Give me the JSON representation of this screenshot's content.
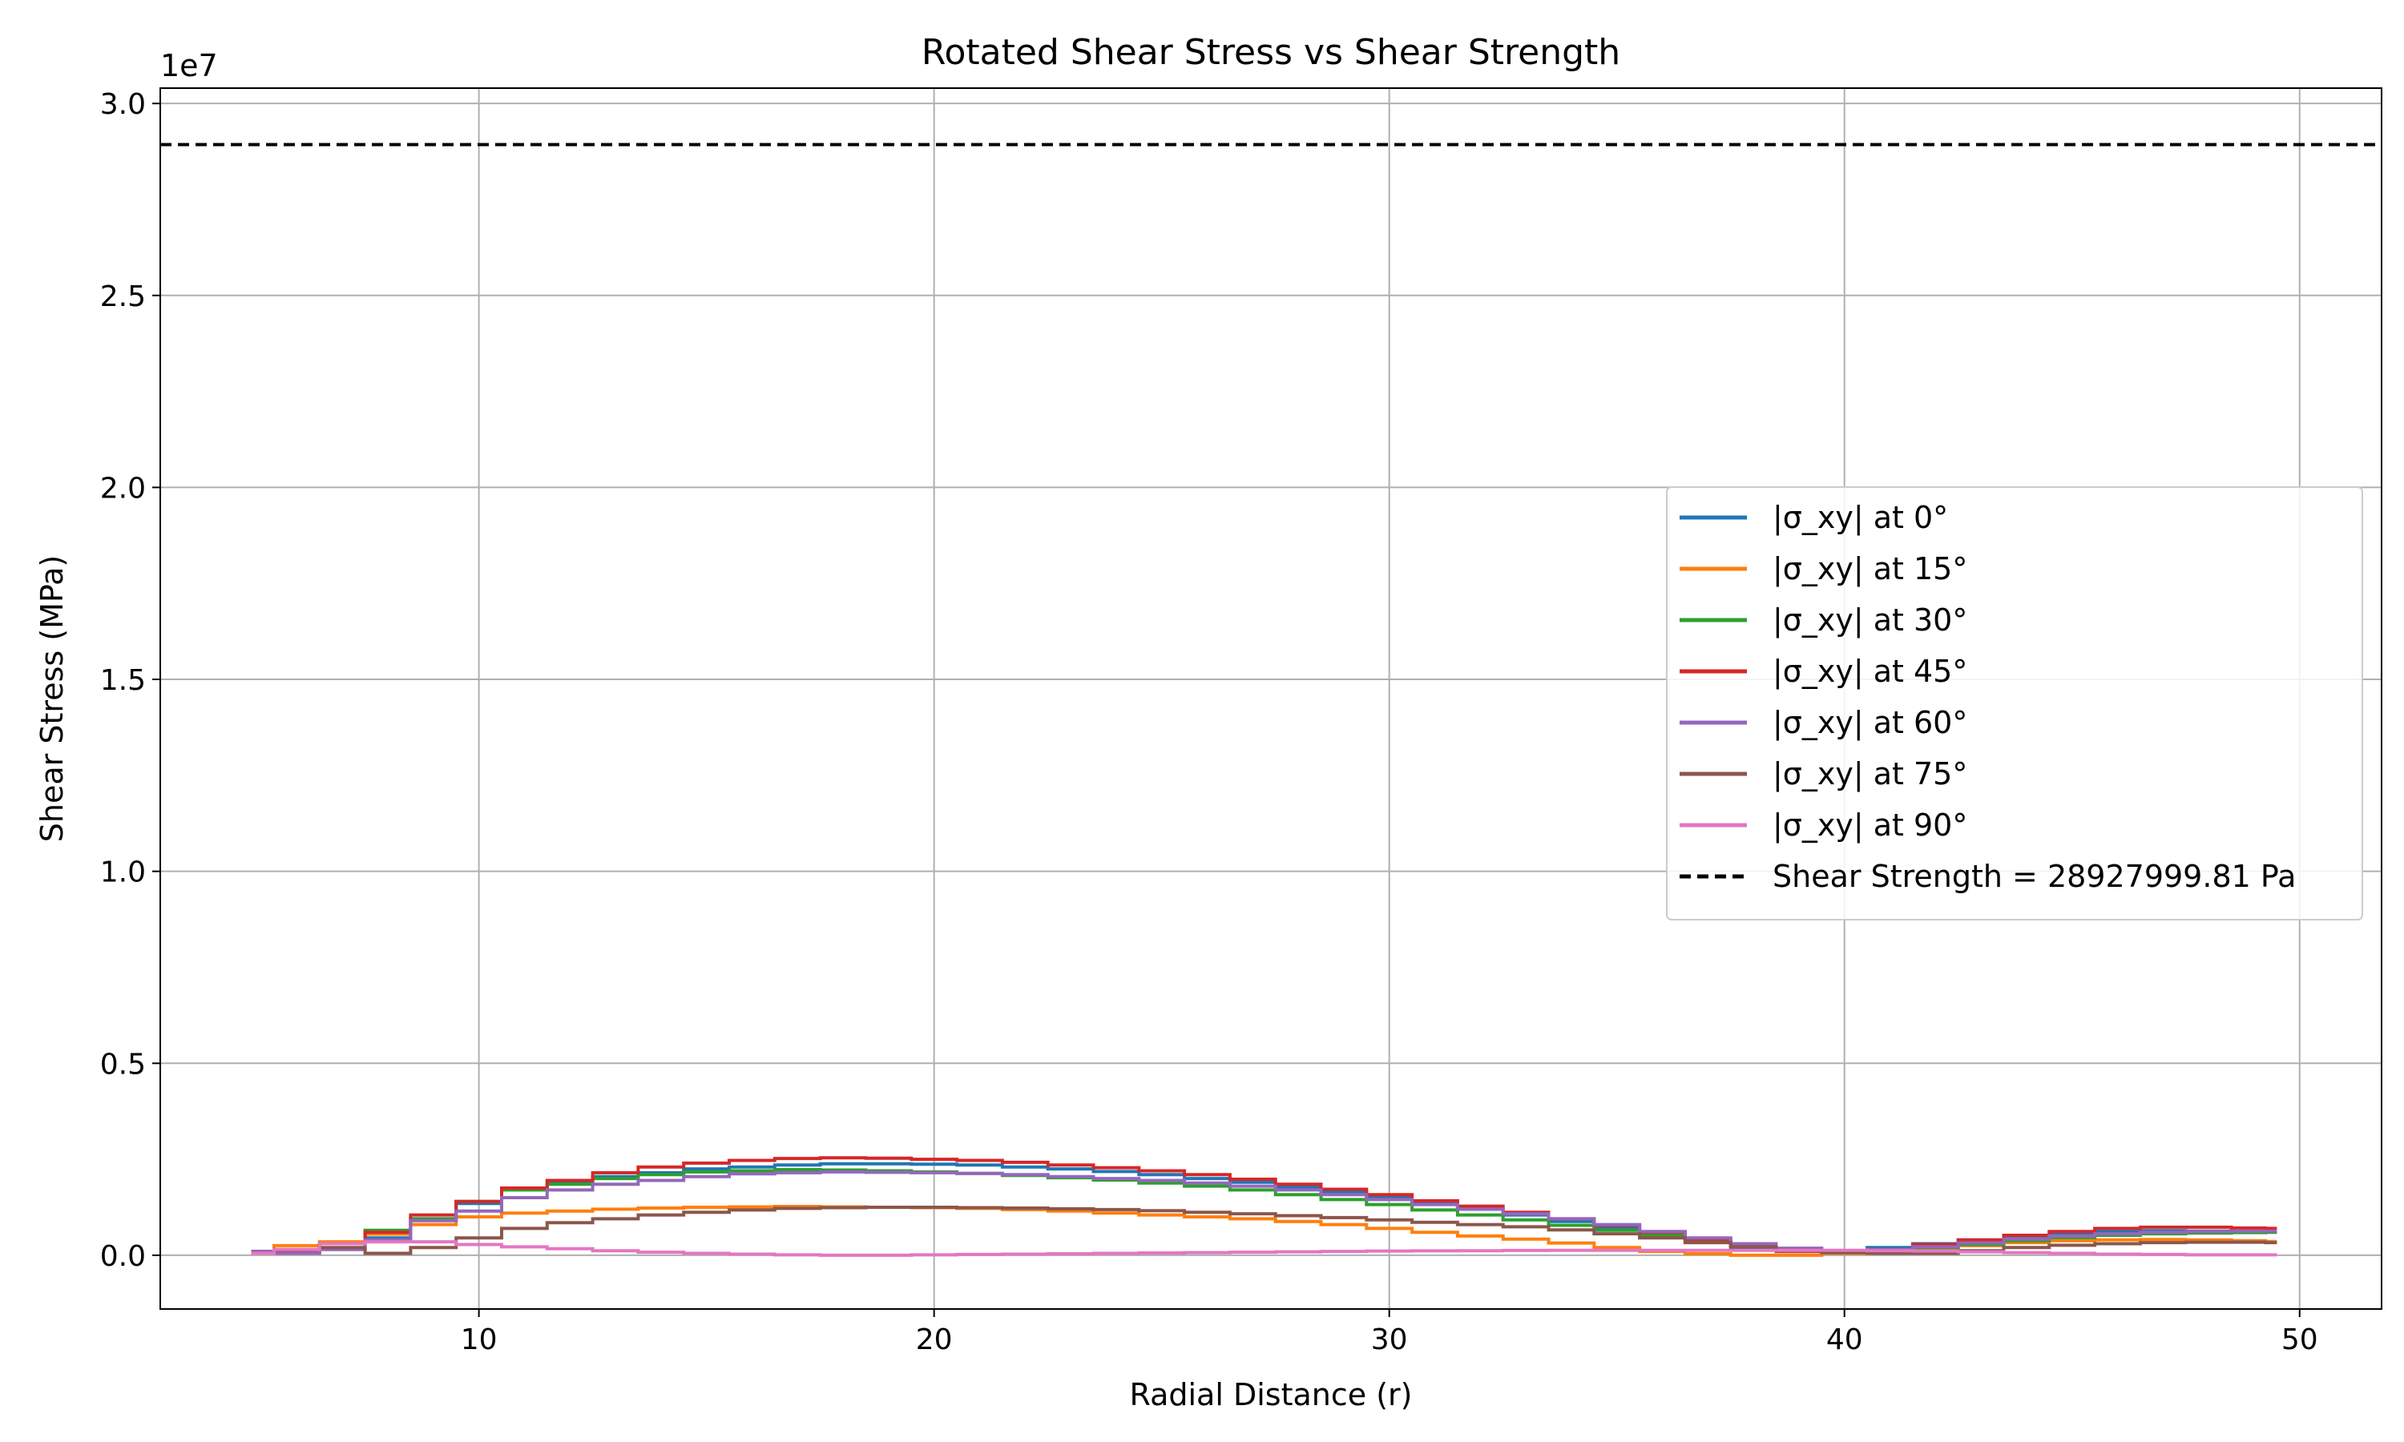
{
  "chart_data": {
    "type": "line",
    "title": "Rotated Shear Stress vs Shear Strength",
    "xlabel": "Radial Distance (r)",
    "ylabel": "Shear Stress (MPa)",
    "y_offset_label": "1e7",
    "xlim": [
      3.0,
      51.8
    ],
    "ylim": [
      -1400000,
      30400000
    ],
    "xticks": [
      10,
      20,
      30,
      40,
      50
    ],
    "xtick_labels": [
      "10",
      "20",
      "30",
      "40",
      "50"
    ],
    "yticks": [
      0,
      5000000,
      10000000,
      15000000,
      20000000,
      25000000,
      30000000
    ],
    "ytick_labels": [
      "0.0",
      "0.5",
      "1.0",
      "1.5",
      "2.0",
      "2.5",
      "3.0"
    ],
    "grid": true,
    "legend_position": "center-right",
    "x": [
      5.0,
      6.0,
      7.0,
      8.0,
      9.0,
      10.0,
      11.0,
      12.0,
      13.0,
      14.0,
      15.0,
      16.0,
      17.0,
      18.0,
      19.0,
      20.0,
      21.0,
      22.0,
      23.0,
      24.0,
      25.0,
      26.0,
      27.0,
      28.0,
      29.0,
      30.0,
      31.0,
      32.0,
      33.0,
      34.0,
      35.0,
      36.0,
      37.0,
      38.0,
      39.0,
      40.0,
      41.0,
      42.0,
      43.0,
      44.0,
      45.0,
      46.0,
      47.0,
      48.0,
      49.0,
      49.5
    ],
    "series": [
      {
        "name": "|σ_xy| at 0°",
        "color": "#1f77b4",
        "style": "solid",
        "values": [
          100000,
          100000,
          300000,
          450000,
          950000,
          1350000,
          1750000,
          1900000,
          2050000,
          2150000,
          2250000,
          2300000,
          2350000,
          2380000,
          2380000,
          2370000,
          2350000,
          2300000,
          2250000,
          2180000,
          2100000,
          2000000,
          1900000,
          1780000,
          1650000,
          1500000,
          1350000,
          1200000,
          1050000,
          880000,
          700000,
          520000,
          350000,
          200000,
          100000,
          120000,
          200000,
          300000,
          400000,
          500000,
          580000,
          620000,
          640000,
          630000,
          620000,
          620000
        ]
      },
      {
        "name": "|σ_xy| at 15°",
        "color": "#ff7f0e",
        "style": "solid",
        "values": [
          50000,
          250000,
          350000,
          550000,
          800000,
          1000000,
          1100000,
          1150000,
          1200000,
          1230000,
          1250000,
          1260000,
          1270000,
          1260000,
          1250000,
          1240000,
          1220000,
          1190000,
          1150000,
          1100000,
          1050000,
          1000000,
          950000,
          880000,
          800000,
          700000,
          600000,
          500000,
          420000,
          320000,
          200000,
          100000,
          40000,
          0,
          0,
          50000,
          100000,
          150000,
          250000,
          330000,
          380000,
          400000,
          410000,
          400000,
          380000,
          360000
        ]
      },
      {
        "name": "|σ_xy| at 30°",
        "color": "#2ca02c",
        "style": "solid",
        "values": [
          100000,
          100000,
          300000,
          650000,
          950000,
          1400000,
          1700000,
          1850000,
          2000000,
          2100000,
          2170000,
          2200000,
          2230000,
          2220000,
          2200000,
          2170000,
          2130000,
          2080000,
          2020000,
          1960000,
          1880000,
          1800000,
          1700000,
          1580000,
          1450000,
          1320000,
          1180000,
          1050000,
          920000,
          780000,
          650000,
          520000,
          400000,
          280000,
          180000,
          120000,
          150000,
          200000,
          280000,
          380000,
          460000,
          520000,
          560000,
          580000,
          590000,
          600000
        ]
      },
      {
        "name": "|σ_xy| at 45°",
        "color": "#d62728",
        "style": "solid",
        "values": [
          100000,
          100000,
          300000,
          600000,
          1050000,
          1400000,
          1750000,
          1950000,
          2150000,
          2300000,
          2400000,
          2470000,
          2520000,
          2540000,
          2530000,
          2500000,
          2470000,
          2420000,
          2350000,
          2280000,
          2200000,
          2100000,
          1980000,
          1850000,
          1720000,
          1580000,
          1420000,
          1280000,
          1120000,
          950000,
          780000,
          600000,
          420000,
          250000,
          100000,
          80000,
          150000,
          280000,
          400000,
          520000,
          620000,
          700000,
          730000,
          730000,
          710000,
          700000
        ]
      },
      {
        "name": "|σ_xy| at 60°",
        "color": "#9467bd",
        "style": "solid",
        "values": [
          100000,
          50000,
          150000,
          400000,
          900000,
          1150000,
          1500000,
          1700000,
          1850000,
          1950000,
          2050000,
          2120000,
          2150000,
          2170000,
          2160000,
          2150000,
          2130000,
          2100000,
          2050000,
          2000000,
          1950000,
          1880000,
          1800000,
          1700000,
          1580000,
          1450000,
          1320000,
          1200000,
          1080000,
          950000,
          800000,
          620000,
          450000,
          300000,
          180000,
          120000,
          150000,
          220000,
          320000,
          420000,
          500000,
          560000,
          600000,
          620000,
          630000,
          630000
        ]
      },
      {
        "name": "|σ_xy| at 75°",
        "color": "#8c564b",
        "style": "solid",
        "values": [
          50000,
          150000,
          200000,
          50000,
          200000,
          450000,
          700000,
          850000,
          950000,
          1050000,
          1120000,
          1180000,
          1220000,
          1240000,
          1250000,
          1250000,
          1240000,
          1230000,
          1210000,
          1190000,
          1160000,
          1120000,
          1080000,
          1030000,
          980000,
          920000,
          860000,
          800000,
          740000,
          660000,
          560000,
          450000,
          330000,
          220000,
          130000,
          70000,
          50000,
          50000,
          120000,
          200000,
          260000,
          300000,
          330000,
          340000,
          340000,
          330000
        ]
      },
      {
        "name": "|σ_xy| at 90°",
        "color": "#e377c2",
        "style": "solid",
        "values": [
          50000,
          150000,
          300000,
          350000,
          350000,
          280000,
          220000,
          170000,
          120000,
          80000,
          50000,
          30000,
          10000,
          0,
          0,
          10000,
          20000,
          30000,
          40000,
          50000,
          60000,
          70000,
          80000,
          90000,
          100000,
          110000,
          115000,
          120000,
          125000,
          130000,
          130000,
          130000,
          130000,
          130000,
          130000,
          130000,
          120000,
          110000,
          90000,
          70000,
          50000,
          30000,
          20000,
          10000,
          10000,
          10000
        ]
      },
      {
        "name": "Shear Strength = 28927999.81 Pa",
        "color": "#000000",
        "style": "dashed",
        "values": [
          28927999.81,
          28927999.81,
          28927999.81,
          28927999.81,
          28927999.81,
          28927999.81,
          28927999.81,
          28927999.81,
          28927999.81,
          28927999.81,
          28927999.81,
          28927999.81,
          28927999.81,
          28927999.81,
          28927999.81,
          28927999.81,
          28927999.81,
          28927999.81,
          28927999.81,
          28927999.81,
          28927999.81,
          28927999.81,
          28927999.81,
          28927999.81,
          28927999.81,
          28927999.81,
          28927999.81,
          28927999.81,
          28927999.81,
          28927999.81,
          28927999.81,
          28927999.81,
          28927999.81,
          28927999.81,
          28927999.81,
          28927999.81,
          28927999.81,
          28927999.81,
          28927999.81,
          28927999.81,
          28927999.81,
          28927999.81,
          28927999.81,
          28927999.81,
          28927999.81,
          28927999.81
        ],
        "spans_full_axis": true
      }
    ]
  }
}
